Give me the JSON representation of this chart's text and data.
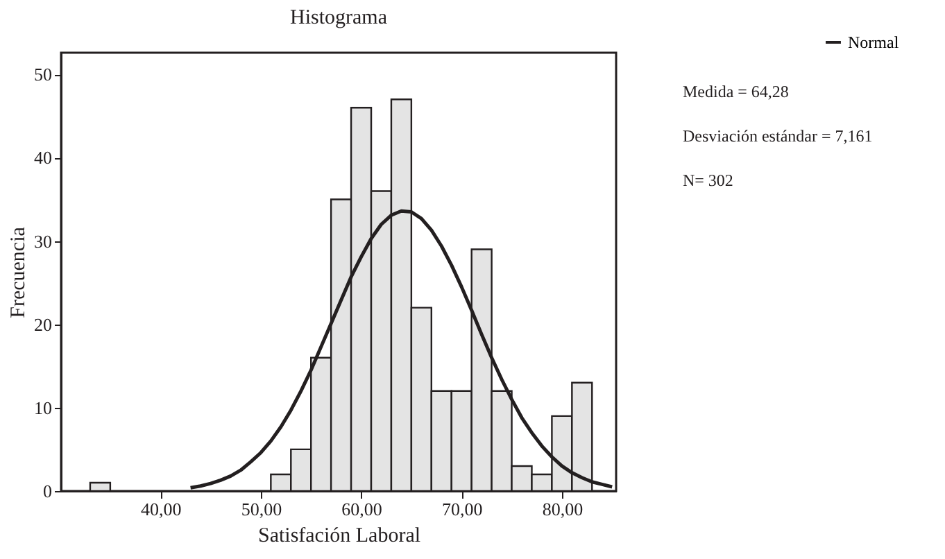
{
  "chart_data": {
    "type": "histogram",
    "title": "Histograma",
    "xlabel": "Satisfación Laboral",
    "ylabel": "Frecuencia",
    "xlim": [
      30.1,
      85.4
    ],
    "ylim": [
      0,
      52.6
    ],
    "xticks": [
      {
        "value": 40,
        "label": "40,00"
      },
      {
        "value": 50,
        "label": "50,00"
      },
      {
        "value": 60,
        "label": "60,00"
      },
      {
        "value": 70,
        "label": "70,00"
      },
      {
        "value": 80,
        "label": "80,00"
      }
    ],
    "yticks": [
      0,
      10,
      20,
      30,
      40,
      50
    ],
    "grid": false,
    "legend": "top right",
    "series": [
      {
        "color": "#e4e4e4",
        "bins": [
          33,
          35,
          37,
          39,
          41,
          43,
          45,
          47,
          49,
          51,
          53,
          55,
          57,
          59,
          61,
          63,
          65,
          67,
          69,
          71,
          73,
          75,
          77,
          79,
          81,
          83
        ],
        "values": [
          1,
          0,
          0,
          0,
          0,
          0,
          0,
          0,
          0,
          2,
          5,
          16,
          35,
          46,
          36,
          47,
          22,
          12,
          12,
          29,
          12,
          3,
          2,
          9,
          13
        ]
      },
      {
        "type": "line",
        "name": "Normal",
        "color": "#231f20",
        "x": [
          43,
          44,
          45,
          46,
          47,
          48,
          49,
          50,
          51,
          52,
          53,
          54,
          55,
          56,
          57,
          58,
          59,
          60,
          61,
          62,
          63,
          64,
          65,
          66,
          67,
          68,
          69,
          70,
          71,
          72,
          73,
          74,
          75,
          76,
          77,
          78,
          79,
          80,
          81,
          82,
          83,
          84,
          85
        ],
        "values": [
          0.4,
          0.6,
          0.9,
          1.3,
          1.8,
          2.5,
          3.5,
          4.6,
          6.0,
          7.7,
          9.7,
          12.0,
          14.5,
          17.3,
          20.1,
          22.9,
          25.7,
          28.1,
          30.3,
          32.0,
          33.1,
          33.6,
          33.5,
          32.7,
          31.3,
          29.4,
          27.1,
          24.5,
          21.7,
          18.8,
          16.0,
          13.4,
          11.0,
          8.8,
          7.0,
          5.4,
          4.1,
          3.0,
          2.2,
          1.6,
          1.1,
          0.8,
          0.5
        ]
      }
    ],
    "annotations": [
      "Medida = 64,28",
      "Desviación estándar = 7,161",
      "N= 302"
    ]
  }
}
